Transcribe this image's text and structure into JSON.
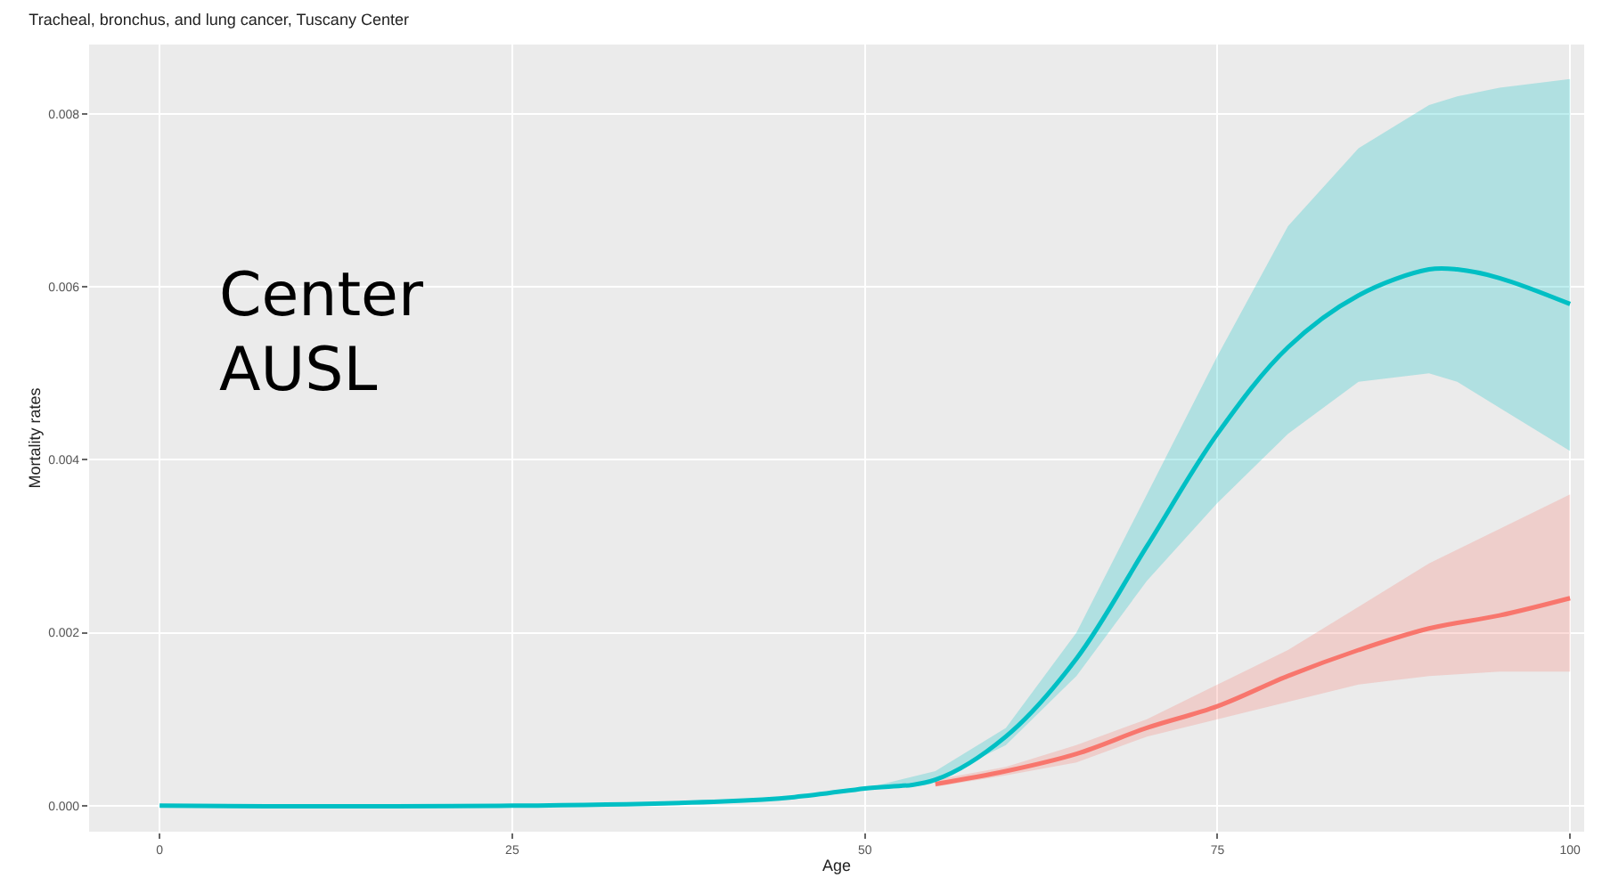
{
  "chart_data": {
    "type": "line",
    "title": "Tracheal, bronchus, and lung cancer, Tuscany Center",
    "xlabel": "Age",
    "ylabel": "Mortality rates",
    "annotations": [
      "Center",
      "AUSL"
    ],
    "xlim": [
      -5,
      101
    ],
    "xticks": [
      0,
      25,
      50,
      75,
      100
    ],
    "ylim": [
      -0.0003,
      0.0088
    ],
    "yticks": [
      {
        "value": 0,
        "label": "0.000"
      },
      {
        "value": 0.002,
        "label": "0.002"
      },
      {
        "value": 0.004,
        "label": "0.004"
      },
      {
        "value": 0.006,
        "label": "0.006"
      },
      {
        "value": 0.008,
        "label": "0.008"
      }
    ],
    "grid": true,
    "series": [
      {
        "color": "#f8766d",
        "x": [
          55,
          60,
          65,
          70,
          75,
          80,
          85,
          90,
          95,
          100
        ],
        "values": [
          0.00025,
          0.0004,
          0.0006,
          0.0009,
          0.00115,
          0.0015,
          0.0018,
          0.00205,
          0.0022,
          0.0024
        ],
        "lower": [
          0.00022,
          0.00035,
          0.0005,
          0.0008,
          0.001,
          0.0012,
          0.0014,
          0.0015,
          0.00155,
          0.00155
        ],
        "upper": [
          0.0003,
          0.00045,
          0.0007,
          0.001,
          0.0014,
          0.0018,
          0.0023,
          0.0028,
          0.0032,
          0.0036
        ]
      },
      {
        "color": "#00bfc4",
        "x": [
          0,
          25,
          40,
          45,
          50,
          55,
          60,
          65,
          70,
          75,
          80,
          85,
          90,
          92,
          95,
          100
        ],
        "values": [
          0,
          0,
          5e-05,
          0.0001,
          0.0002,
          0.0003,
          0.0008,
          0.0017,
          0.003,
          0.0043,
          0.0053,
          0.0059,
          0.0062,
          0.0062,
          0.0061,
          0.0058
        ],
        "lower": [
          0,
          0,
          5e-05,
          0.0001,
          0.0002,
          0.0003,
          0.0007,
          0.0015,
          0.0026,
          0.0035,
          0.0043,
          0.0049,
          0.005,
          0.0049,
          0.0046,
          0.0041
        ],
        "upper": [
          0,
          0,
          5e-05,
          0.0001,
          0.0002,
          0.0004,
          0.0009,
          0.002,
          0.0036,
          0.0052,
          0.0067,
          0.0076,
          0.0081,
          0.0082,
          0.0083,
          0.0084
        ]
      }
    ]
  }
}
